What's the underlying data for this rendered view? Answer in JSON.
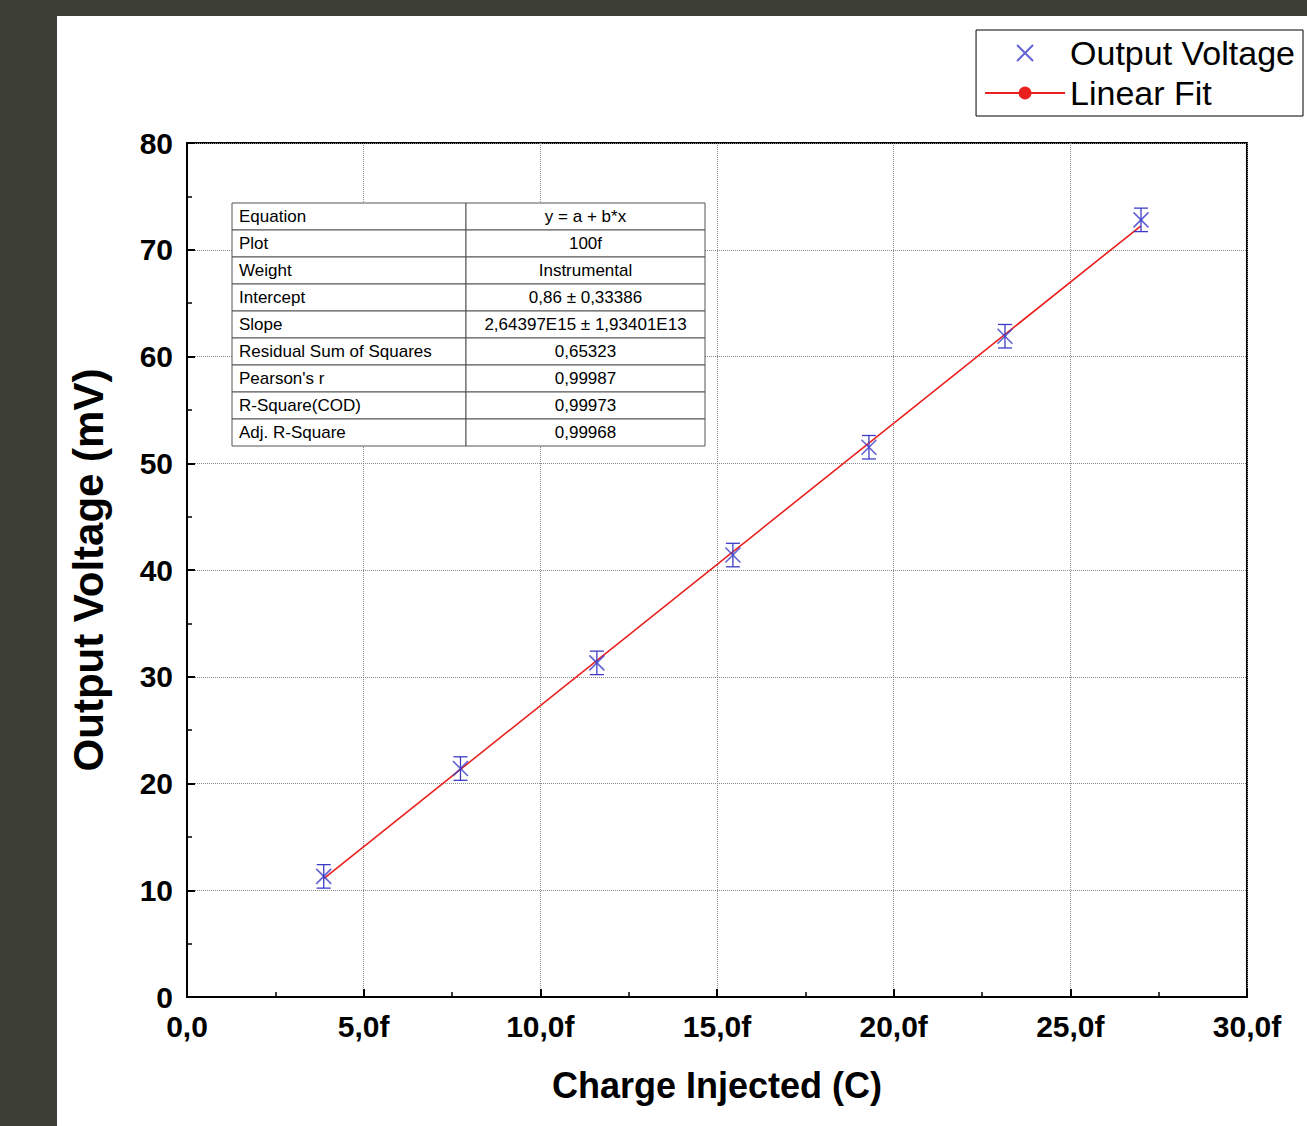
{
  "chart_data": {
    "type": "scatter",
    "x_label": "Charge Injected (C)",
    "y_label": "Output Voltage (mV)",
    "series": [
      {
        "name": "Output Voltage",
        "type": "scatter",
        "color": "#3c3cc8",
        "marker": "x",
        "x": [
          3.87e-15,
          7.74e-15,
          1.16e-14,
          1.545e-14,
          1.93e-14,
          2.315e-14,
          2.7e-14
        ],
        "values": [
          11.3,
          21.4,
          31.3,
          41.4,
          51.5,
          61.9,
          72.8
        ],
        "errors": [
          1.1,
          1.1,
          1.1,
          1.1,
          1.1,
          1.1,
          1.1
        ]
      },
      {
        "name": "Linear Fit",
        "type": "line",
        "color": "#e8201e",
        "line_style": "solid",
        "intercept": 0.86,
        "slope": 2643970000000000.0
      }
    ],
    "xlim": [
      0,
      3e-14
    ],
    "xticks": [
      {
        "value": 0,
        "label": "0,0"
      },
      {
        "value": 5e-15,
        "label": "5,0f"
      },
      {
        "value": 1e-14,
        "label": "10,0f"
      },
      {
        "value": 1.5e-14,
        "label": "15,0f"
      },
      {
        "value": 2e-14,
        "label": "20,0f"
      },
      {
        "value": 2.5e-14,
        "label": "25,0f"
      },
      {
        "value": 3e-14,
        "label": "30,0f"
      }
    ],
    "ylim": [
      0,
      80
    ],
    "yticks": [
      0,
      10,
      20,
      30,
      40,
      50,
      60,
      70,
      80
    ],
    "grid": true,
    "legend": "upper right",
    "fit_table": {
      "rows": [
        [
          "Equation",
          "y = a + b*x"
        ],
        [
          "Plot",
          "100f"
        ],
        [
          "Weight",
          "Instrumental"
        ],
        [
          "Intercept",
          "0,86 ± 0,33386"
        ],
        [
          "Slope",
          "2,64397E15 ± 1,93401E13"
        ],
        [
          "Residual Sum of Squares",
          "0,65323"
        ],
        [
          "Pearson's r",
          "0,99987"
        ],
        [
          "R-Square(COD)",
          "0,99973"
        ],
        [
          "Adj. R-Square",
          "0,99968"
        ]
      ]
    }
  }
}
